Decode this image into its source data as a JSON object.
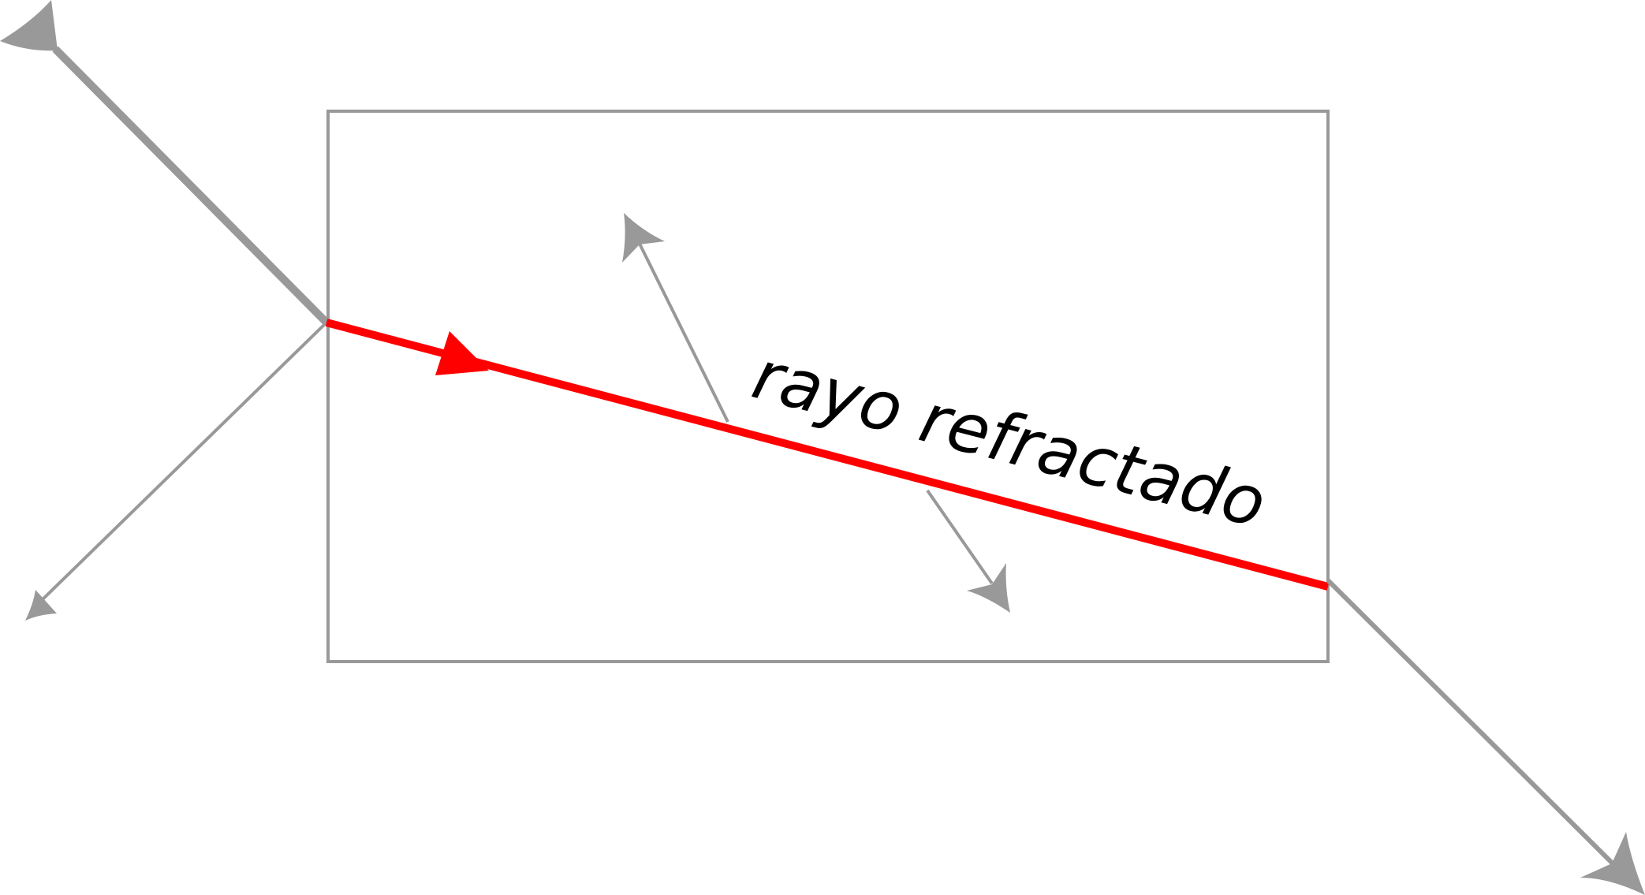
{
  "diagram": {
    "label": "rayo refractado"
  },
  "colors": {
    "refracted_ray": "#ff0000",
    "lines": "#999999",
    "text": "#000000",
    "background": "#ffffff"
  }
}
